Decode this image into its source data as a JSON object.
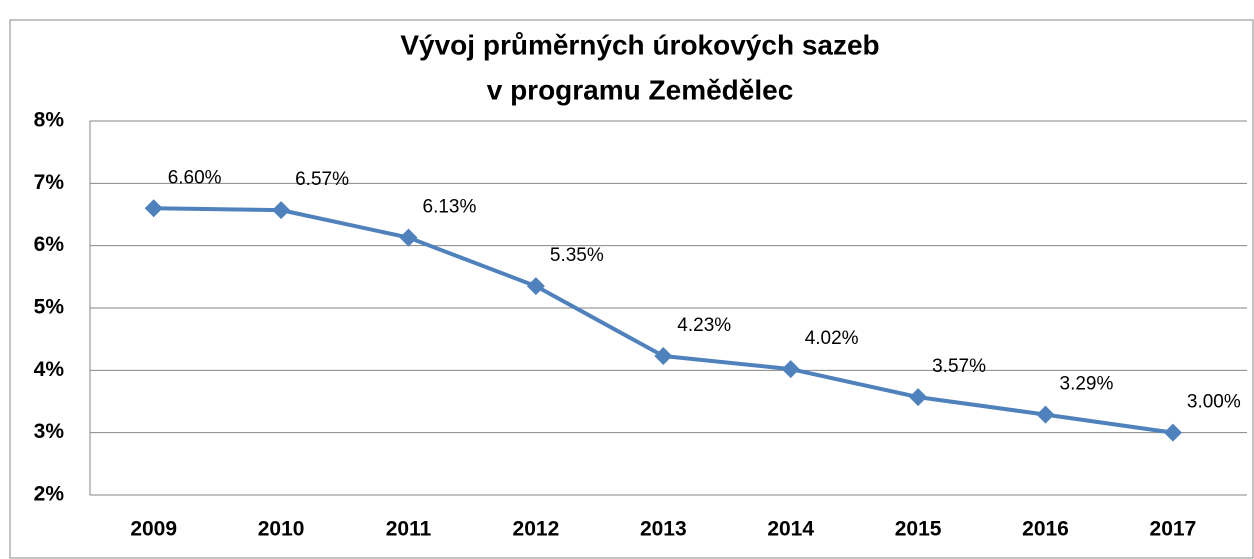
{
  "chart_data": {
    "type": "line",
    "title": [
      "Vývoj průměrných úrokových sazeb",
      "v programu Zemědělec"
    ],
    "categories": [
      "2009",
      "2010",
      "2011",
      "2012",
      "2013",
      "2014",
      "2015",
      "2016",
      "2017"
    ],
    "series": [
      {
        "color": "#4f81bd",
        "values": [
          6.6,
          6.57,
          6.13,
          5.35,
          4.23,
          4.02,
          3.57,
          3.29,
          3.0
        ],
        "value_labels": [
          "6.60%",
          "6.57%",
          "6.13%",
          "5.35%",
          "4.23%",
          "4.02%",
          "3.57%",
          "3.29%",
          "3.00%"
        ]
      }
    ],
    "ylim": [
      2,
      8
    ],
    "yticks": [
      {
        "value": 2,
        "label": "2%"
      },
      {
        "value": 3,
        "label": "3%"
      },
      {
        "value": 4,
        "label": "4%"
      },
      {
        "value": 5,
        "label": "5%"
      },
      {
        "value": 6,
        "label": "6%"
      },
      {
        "value": 7,
        "label": "7%"
      },
      {
        "value": 8,
        "label": "8%"
      }
    ],
    "grid": true
  }
}
